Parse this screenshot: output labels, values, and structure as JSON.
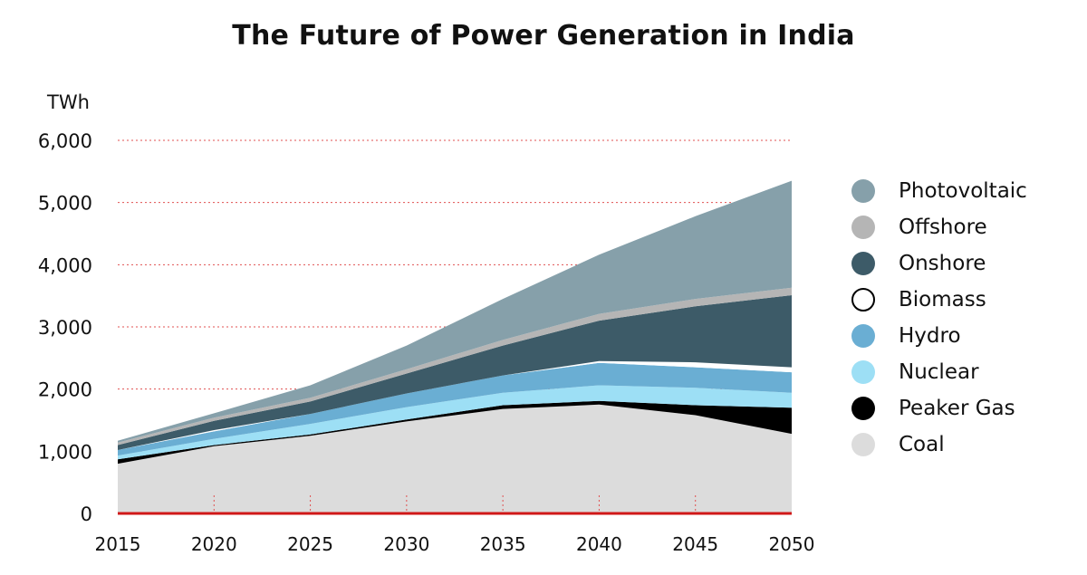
{
  "chart_data": {
    "type": "area",
    "title": "The Future of Power Generation in India",
    "ylabel": "TWh",
    "ylim": [
      0,
      6000
    ],
    "yticks": [
      0,
      1000,
      2000,
      3000,
      4000,
      5000,
      6000
    ],
    "ytick_labels": [
      "0",
      "1,000",
      "2,000",
      "3,000",
      "4,000",
      "5,000",
      "6,000"
    ],
    "xlim": [
      2015,
      2050
    ],
    "xticks": [
      2015,
      2020,
      2025,
      2030,
      2035,
      2040,
      2045,
      2050
    ],
    "xtick_labels": [
      "2015",
      "2020",
      "2025",
      "2030",
      "2035",
      "2040",
      "2045",
      "2050"
    ],
    "grid": true,
    "stacked": true,
    "legend_position": "right",
    "x": [
      2015,
      2020,
      2025,
      2030,
      2035,
      2040,
      2045,
      2050
    ],
    "series": [
      {
        "name": "Coal",
        "color": "#dcdcdc",
        "values": [
          800,
          1080,
          1250,
          1480,
          1680,
          1750,
          1580,
          1280
        ]
      },
      {
        "name": "Peaker Gas",
        "color": "#000000",
        "values": [
          70,
          20,
          20,
          30,
          60,
          60,
          160,
          420
        ]
      },
      {
        "name": "Nuclear",
        "color": "#9ddff5",
        "values": [
          60,
          100,
          170,
          200,
          200,
          250,
          280,
          240
        ]
      },
      {
        "name": "Hydro",
        "color": "#6aaed3",
        "values": [
          90,
          120,
          160,
          220,
          280,
          360,
          330,
          330
        ]
      },
      {
        "name": "Biomass",
        "color": "#ffffff",
        "values": [
          0,
          20,
          0,
          0,
          0,
          30,
          80,
          80
        ]
      },
      {
        "name": "Onshore",
        "color": "#3d5b68",
        "values": [
          80,
          150,
          200,
          320,
          480,
          650,
          900,
          1160
        ]
      },
      {
        "name": "Offshore",
        "color": "#b5b5b5",
        "values": [
          40,
          50,
          60,
          70,
          90,
          110,
          120,
          120
        ]
      },
      {
        "name": "Photovoltaic",
        "color": "#86a0aa",
        "values": [
          30,
          70,
          200,
          380,
          660,
          950,
          1330,
          1720
        ]
      }
    ],
    "legend": [
      {
        "label": "Photovoltaic",
        "color": "#86a0aa"
      },
      {
        "label": "Offshore",
        "color": "#b5b5b5"
      },
      {
        "label": "Onshore",
        "color": "#3d5b68"
      },
      {
        "label": "Biomass",
        "color": "#ffffff"
      },
      {
        "label": "Hydro",
        "color": "#6aaed3"
      },
      {
        "label": "Nuclear",
        "color": "#9ddff5"
      },
      {
        "label": "Peaker Gas",
        "color": "#000000"
      },
      {
        "label": "Coal",
        "color": "#dcdcdc"
      }
    ],
    "colors": {
      "grid": "#e05050",
      "baseline": "#d01818"
    }
  }
}
